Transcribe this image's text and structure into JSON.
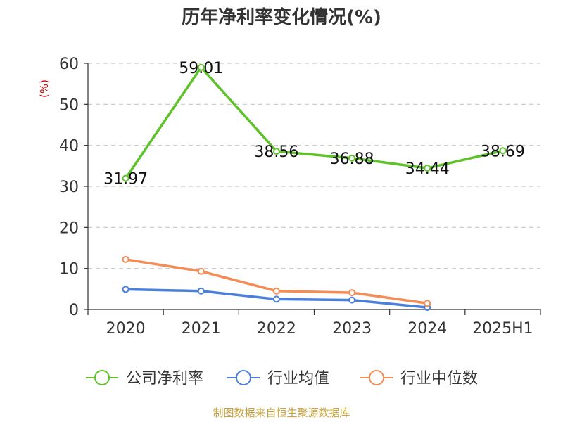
{
  "chart_data": {
    "type": "line",
    "title": "历年净利率变化情况(%)",
    "ylabel": "(%)",
    "categories": [
      "2020",
      "2021",
      "2022",
      "2023",
      "2024",
      "2025H1"
    ],
    "ylim": [
      0,
      60
    ],
    "yticks": [
      "0",
      "10",
      "20",
      "30",
      "40",
      "50",
      "60"
    ],
    "grid": true,
    "legend_position": "bottom",
    "series": [
      {
        "name": "公司净利率",
        "color": "#5ec229",
        "values": [
          31.97,
          59.01,
          38.56,
          36.88,
          34.44,
          38.69
        ],
        "labels": [
          "31.97",
          "59.01",
          "38.56",
          "36.88",
          "34.44",
          "38.69"
        ]
      },
      {
        "name": "行业均值",
        "color": "#4a7fdb",
        "values": [
          4.9,
          4.5,
          2.5,
          2.3,
          0.5,
          null
        ]
      },
      {
        "name": "行业中位数",
        "color": "#f58c55",
        "values": [
          12.2,
          9.3,
          4.5,
          4.1,
          1.5,
          null
        ]
      }
    ]
  },
  "source": "制图数据来自恒生聚源数据库"
}
